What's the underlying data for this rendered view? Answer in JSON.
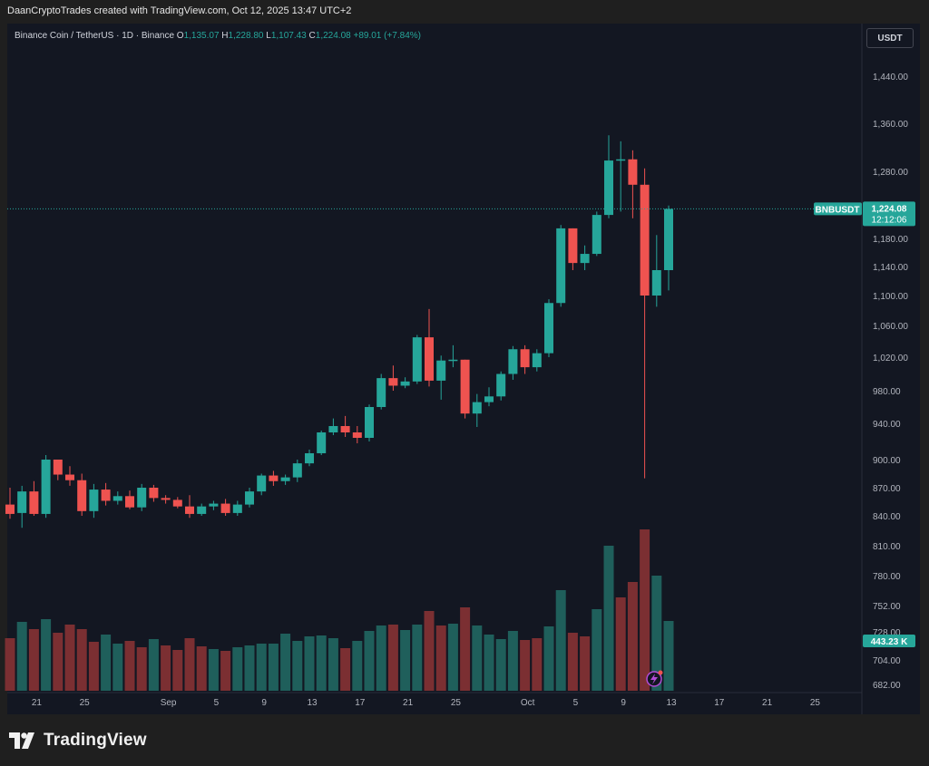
{
  "header": {
    "attribution": "DaanCryptoTrades created with TradingView.com, Oct 12, 2025 13:47 UTC+2"
  },
  "legend": {
    "symbol": "Binance Coin / TetherUS · 1D · Binance",
    "o_label": "O",
    "o_value": "1,135.07",
    "h_label": "H",
    "h_value": "1,228.80",
    "l_label": "L",
    "l_value": "1,107.43",
    "c_label": "C",
    "c_value": "1,224.08",
    "change": "+89.01 (+7.84%)"
  },
  "currency_button": "USDT",
  "price_tag": {
    "symbol": "BNBUSDT",
    "price": "1,224.08",
    "countdown": "12:12:06"
  },
  "volume_tag": "443.23 K",
  "branding": "TradingView",
  "colors": {
    "up": "#26a69a",
    "down": "#ef5350",
    "vol_up": "#1f5f5b",
    "vol_down": "#7b2f32",
    "bg": "#131722",
    "grid": "#1e222d"
  },
  "chart_data": {
    "type": "candlestick",
    "price_ticks": [
      1440,
      1360,
      1280,
      1180,
      1140,
      1100,
      1060,
      1020,
      980,
      940,
      900,
      870,
      840,
      810,
      780,
      752,
      728,
      704,
      682
    ],
    "price_tick_labels": [
      "1,440.00",
      "1,360.00",
      "1,280.00",
      "1,180.00",
      "1,140.00",
      "1,100.00",
      "1,060.00",
      "1,020.00",
      "980.00",
      "940.00",
      "900.00",
      "870.00",
      "840.00",
      "810.00",
      "780.00",
      "752.00",
      "728.00",
      "704.00",
      "682.00"
    ],
    "x_tick_labels": [
      {
        "label": "21",
        "i": 2
      },
      {
        "label": "25",
        "i": 6
      },
      {
        "label": "Sep",
        "i": 13
      },
      {
        "label": "5",
        "i": 17
      },
      {
        "label": "9",
        "i": 21
      },
      {
        "label": "13",
        "i": 25
      },
      {
        "label": "17",
        "i": 29
      },
      {
        "label": "21",
        "i": 33
      },
      {
        "label": "25",
        "i": 37
      },
      {
        "label": "Oct",
        "i": 43
      },
      {
        "label": "5",
        "i": 47
      },
      {
        "label": "9",
        "i": 51
      },
      {
        "label": "13",
        "i": 55
      },
      {
        "label": "17",
        "i": 59
      },
      {
        "label": "21",
        "i": 63
      },
      {
        "label": "25",
        "i": 67
      }
    ],
    "candles": [
      [
        852,
        842,
        870,
        837
      ],
      [
        843,
        866,
        872,
        828
      ],
      [
        866,
        842,
        877,
        840
      ],
      [
        842,
        900,
        905,
        838
      ],
      [
        900,
        884,
        900,
        878
      ],
      [
        884,
        878,
        893,
        872
      ],
      [
        878,
        845,
        885,
        840
      ],
      [
        845,
        868,
        874,
        838
      ],
      [
        868,
        856,
        875,
        851
      ],
      [
        856,
        861,
        866,
        852
      ],
      [
        861,
        849,
        867,
        847
      ],
      [
        849,
        870,
        874,
        845
      ],
      [
        870,
        859,
        873,
        855
      ],
      [
        859,
        857,
        862,
        853
      ],
      [
        857,
        850,
        860,
        848
      ],
      [
        850,
        842,
        862,
        838
      ],
      [
        842,
        850,
        853,
        840
      ],
      [
        850,
        853,
        856,
        846
      ],
      [
        853,
        843,
        858,
        840
      ],
      [
        843,
        852,
        856,
        840
      ],
      [
        852,
        866,
        870,
        849
      ],
      [
        866,
        883,
        885,
        862
      ],
      [
        883,
        877,
        888,
        872
      ],
      [
        877,
        881,
        884,
        873
      ],
      [
        881,
        896,
        900,
        876
      ],
      [
        896,
        907,
        911,
        893
      ],
      [
        907,
        930,
        932,
        905
      ],
      [
        930,
        937,
        946,
        927
      ],
      [
        937,
        930,
        949,
        925
      ],
      [
        930,
        924,
        937,
        918
      ],
      [
        924,
        960,
        963,
        920
      ],
      [
        960,
        995,
        1000,
        957
      ],
      [
        995,
        986,
        1010,
        980
      ],
      [
        986,
        991,
        996,
        983
      ],
      [
        991,
        1045,
        1048,
        988
      ],
      [
        1045,
        992,
        1082,
        985
      ],
      [
        992,
        1016,
        1022,
        969
      ],
      [
        1016,
        1017,
        1035,
        1008
      ],
      [
        1017,
        952,
        1017,
        946
      ],
      [
        952,
        966,
        976,
        936
      ],
      [
        966,
        973,
        984,
        961
      ],
      [
        973,
        1000,
        1003,
        968
      ],
      [
        1000,
        1030,
        1034,
        993
      ],
      [
        1030,
        1008,
        1035,
        1000
      ],
      [
        1008,
        1025,
        1030,
        1003
      ],
      [
        1025,
        1090,
        1095,
        1020
      ],
      [
        1090,
        1195,
        1200,
        1085
      ],
      [
        1195,
        1145,
        1195,
        1135
      ],
      [
        1145,
        1158,
        1170,
        1135
      ],
      [
        1158,
        1215,
        1220,
        1155
      ],
      [
        1215,
        1298,
        1340,
        1210
      ],
      [
        1298,
        1300,
        1330,
        1220
      ],
      [
        1300,
        1260,
        1315,
        1210
      ],
      [
        1260,
        1100,
        1285,
        880
      ],
      [
        1100,
        1135,
        1185,
        1085
      ],
      [
        1135,
        1224,
        1229,
        1107
      ]
    ],
    "volumes": [
      [
        58,
        0
      ],
      [
        76,
        1
      ],
      [
        68,
        0
      ],
      [
        79,
        1
      ],
      [
        64,
        0
      ],
      [
        73,
        0
      ],
      [
        68,
        0
      ],
      [
        54,
        0
      ],
      [
        62,
        1
      ],
      [
        52,
        1
      ],
      [
        55,
        0
      ],
      [
        48,
        0
      ],
      [
        57,
        1
      ],
      [
        50,
        0
      ],
      [
        45,
        0
      ],
      [
        58,
        0
      ],
      [
        49,
        0
      ],
      [
        46,
        1
      ],
      [
        44,
        0
      ],
      [
        48,
        1
      ],
      [
        50,
        1
      ],
      [
        52,
        1
      ],
      [
        52,
        1
      ],
      [
        63,
        1
      ],
      [
        55,
        1
      ],
      [
        60,
        1
      ],
      [
        61,
        1
      ],
      [
        58,
        1
      ],
      [
        47,
        0
      ],
      [
        55,
        1
      ],
      [
        66,
        1
      ],
      [
        72,
        1
      ],
      [
        73,
        0
      ],
      [
        67,
        1
      ],
      [
        73,
        1
      ],
      [
        88,
        0
      ],
      [
        72,
        0
      ],
      [
        74,
        1
      ],
      [
        92,
        0
      ],
      [
        72,
        1
      ],
      [
        62,
        1
      ],
      [
        57,
        1
      ],
      [
        66,
        1
      ],
      [
        56,
        0
      ],
      [
        58,
        0
      ],
      [
        71,
        1
      ],
      [
        111,
        1
      ],
      [
        64,
        0
      ],
      [
        60,
        0
      ],
      [
        90,
        1
      ],
      [
        160,
        1
      ],
      [
        103,
        0
      ],
      [
        120,
        0
      ],
      [
        178,
        0
      ],
      [
        127,
        1
      ],
      [
        77,
        1
      ]
    ]
  }
}
